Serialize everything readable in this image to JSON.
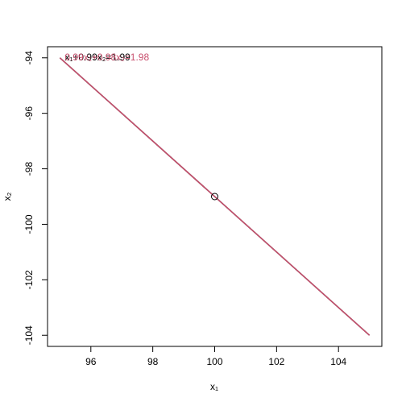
{
  "chart_data": {
    "type": "line",
    "xlabel": "x₁",
    "ylabel": "x₂",
    "xlim": [
      94.6,
      105.4
    ],
    "ylim": [
      -104.4,
      -93.6
    ],
    "xticks": [
      96,
      98,
      100,
      102,
      104
    ],
    "yticks": [
      -104,
      -102,
      -100,
      -98,
      -96,
      -94
    ],
    "series": [
      {
        "name": "x₁+0.99x₂=1.99",
        "color": "#000000",
        "x": [
          95,
          105
        ],
        "values": [
          -94,
          -104
        ]
      },
      {
        "name": "0.99x₁+0.98x₂=1.98",
        "color": "#c8506e",
        "x": [
          95,
          105
        ],
        "values": [
          -94,
          -104
        ]
      }
    ],
    "point": {
      "x": 100,
      "y": -99
    }
  }
}
